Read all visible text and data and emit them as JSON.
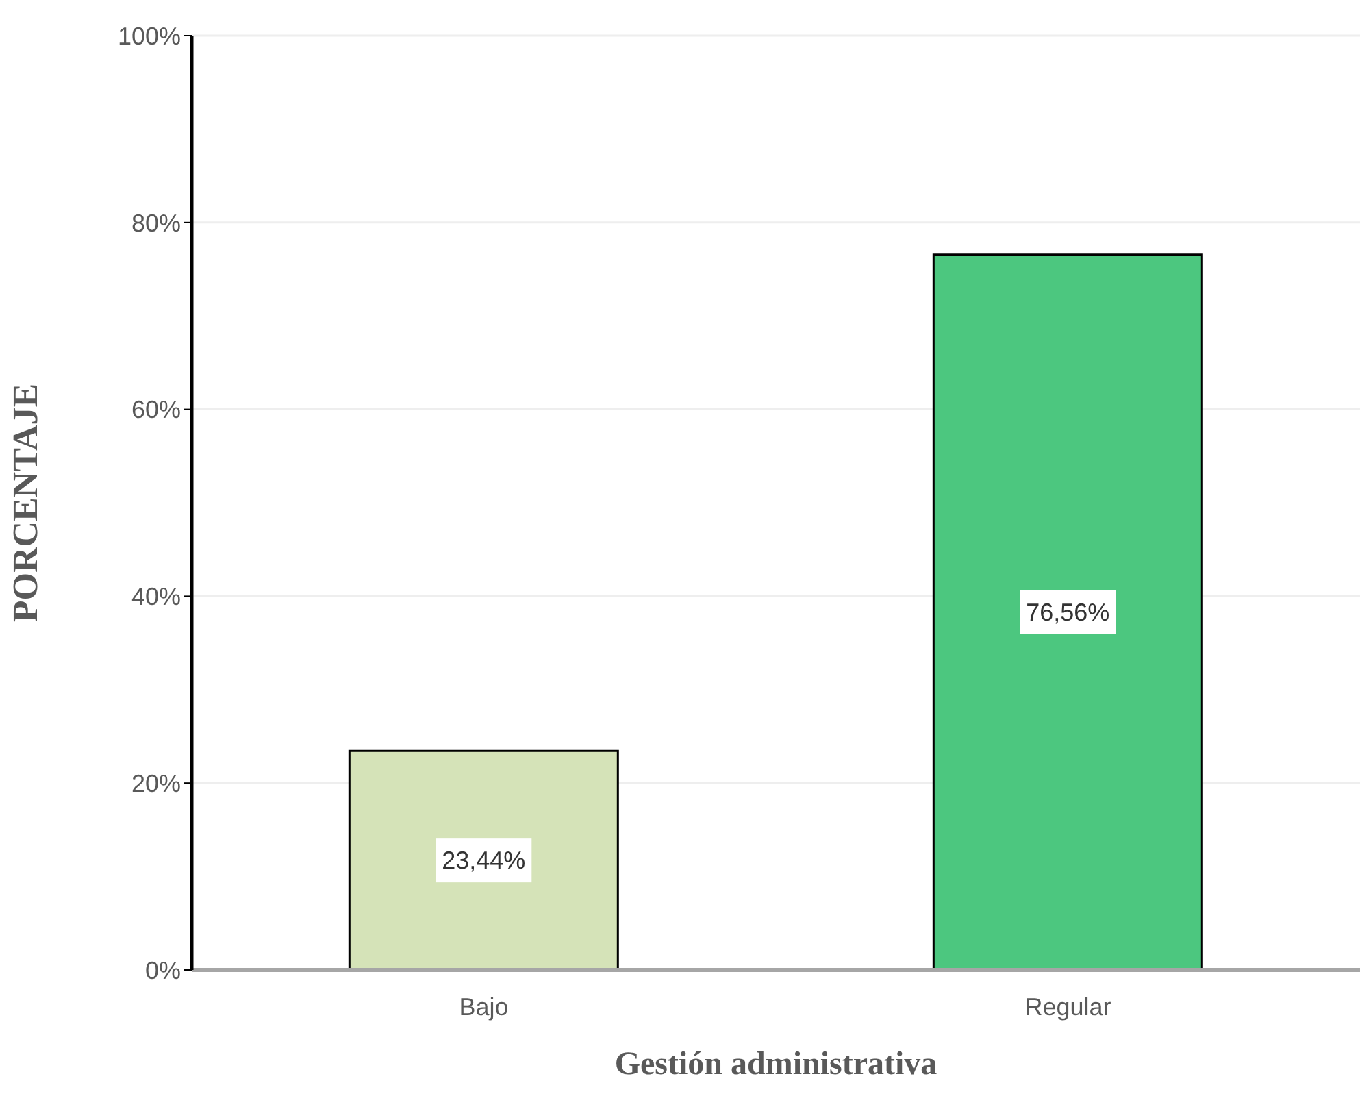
{
  "chart_data": {
    "type": "bar",
    "xlabel": "Gestión administrativa",
    "ylabel": "PORCENTAJE",
    "categories": [
      "Bajo",
      "Regular"
    ],
    "values": [
      23.44,
      76.56
    ],
    "colors": [
      "#d5e3b8",
      "#4cc77f"
    ],
    "value_labels": [
      "23,44%",
      "76,56%"
    ],
    "ylim": [
      0,
      100
    ],
    "yticks": [
      {
        "value": 0,
        "label": "0%"
      },
      {
        "value": 20,
        "label": "20%"
      },
      {
        "value": 40,
        "label": "40%"
      },
      {
        "value": 60,
        "label": "60%"
      },
      {
        "value": 80,
        "label": "80%"
      },
      {
        "value": 100,
        "label": "100%"
      }
    ],
    "grid": "y",
    "legend": false
  }
}
